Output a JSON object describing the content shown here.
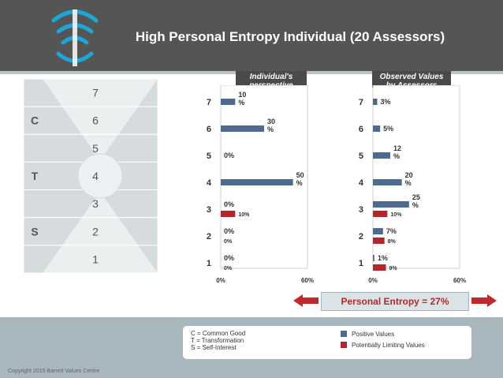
{
  "title": "High Personal Entropy Individual (20 Assessors)",
  "levels_panel": {
    "numbers": [
      "7",
      "6",
      "5",
      "4",
      "3",
      "2",
      "1"
    ],
    "groups": [
      {
        "label": "C",
        "levels": [
          5,
          6,
          7
        ]
      },
      {
        "label": "T",
        "levels": [
          4
        ]
      },
      {
        "label": "S",
        "levels": [
          1,
          2,
          3
        ]
      }
    ]
  },
  "chart_data": [
    {
      "type": "bar",
      "orientation": "horizontal",
      "header": [
        "Individual's",
        "perspective"
      ],
      "categories": [
        "7",
        "6",
        "5",
        "4",
        "3",
        "2",
        "1"
      ],
      "series": [
        {
          "name": "Positive Values",
          "color": "#4f6a8f",
          "values": [
            10,
            30,
            0,
            50,
            0,
            0,
            0
          ],
          "labels": [
            "10\n%",
            "30\n%",
            "0%",
            "50\n%",
            "0%",
            "0%",
            "0%"
          ]
        },
        {
          "name": "Potentially Limiting Values",
          "color": "#b3262b",
          "values": [
            null,
            null,
            null,
            null,
            10,
            0,
            0
          ],
          "labels": [
            null,
            null,
            null,
            null,
            "10%",
            "0%",
            "0%"
          ]
        }
      ],
      "xlim": [
        0,
        60
      ],
      "tick_labels": [
        "0%",
        "60%"
      ]
    },
    {
      "type": "bar",
      "orientation": "horizontal",
      "header": [
        "Observed Values",
        "by Assessors"
      ],
      "categories": [
        "7",
        "6",
        "5",
        "4",
        "3",
        "2",
        "1"
      ],
      "series": [
        {
          "name": "Positive Values",
          "color": "#4f6a8f",
          "values": [
            3,
            5,
            12,
            20,
            25,
            7,
            1
          ],
          "labels": [
            "3%",
            "5%",
            "12\n%",
            "20\n%",
            "25\n%",
            "7%",
            "1%"
          ]
        },
        {
          "name": "Potentially Limiting Values",
          "color": "#b3262b",
          "values": [
            null,
            null,
            null,
            null,
            10,
            8,
            9
          ],
          "labels": [
            null,
            null,
            null,
            null,
            "10%",
            "8%",
            "9%"
          ]
        }
      ],
      "xlim": [
        0,
        60
      ],
      "tick_labels": [
        "0%",
        "60%"
      ]
    }
  ],
  "entropy": "Personal Entropy = 27%",
  "legend": {
    "definitions": [
      "C = Common Good",
      "T = Transformation",
      "S = Self-Interest"
    ],
    "positive": "Positive Values",
    "limiting": "Potentially Limiting Values",
    "positive_color": "#4f6a8f",
    "limiting_color": "#b3262b"
  },
  "copyright": "Copyright 2015 Barrett Values Centre"
}
